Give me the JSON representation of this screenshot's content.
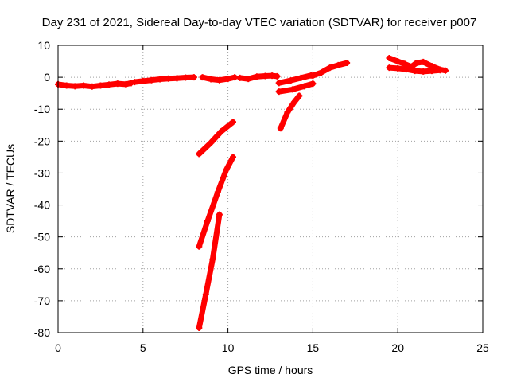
{
  "chart_data": {
    "type": "scatter",
    "title": "Day 231 of 2021, Sidereal Day-to-day VTEC variation (SDTVAR) for receiver p007",
    "xlabel": "GPS time / hours",
    "ylabel": "SDTVAR / TECUs",
    "xlim": [
      0,
      25
    ],
    "ylim": [
      -80,
      10
    ],
    "xticks": [
      "0",
      "5",
      "10",
      "15",
      "20",
      "25"
    ],
    "yticks": [
      "10",
      "0",
      "-10",
      "-20",
      "-30",
      "-40",
      "-50",
      "-60",
      "-70",
      "-80"
    ],
    "grid": true,
    "legend": "none",
    "series_color": "#ff0000",
    "segments": [
      [
        [
          0.0,
          -2.2
        ],
        [
          0.5,
          -2.6
        ],
        [
          1.0,
          -2.8
        ],
        [
          1.5,
          -2.6
        ],
        [
          2.0,
          -2.9
        ],
        [
          2.5,
          -2.6
        ],
        [
          3.0,
          -2.3
        ],
        [
          3.5,
          -2.0
        ],
        [
          4.0,
          -2.2
        ],
        [
          4.3,
          -1.8
        ]
      ],
      [
        [
          4.5,
          -1.5
        ],
        [
          5.0,
          -1.2
        ],
        [
          5.5,
          -0.9
        ],
        [
          6.0,
          -0.6
        ],
        [
          6.5,
          -0.4
        ],
        [
          7.0,
          -0.3
        ],
        [
          7.5,
          -0.1
        ],
        [
          8.0,
          0.0
        ]
      ],
      [
        [
          8.5,
          0.0
        ],
        [
          9.0,
          -0.6
        ],
        [
          9.5,
          -0.9
        ],
        [
          10.0,
          -0.5
        ],
        [
          10.4,
          0.0
        ]
      ],
      [
        [
          10.7,
          -0.2
        ],
        [
          11.2,
          -0.5
        ],
        [
          11.7,
          0.2
        ],
        [
          12.2,
          0.4
        ],
        [
          12.6,
          0.5
        ],
        [
          12.9,
          0.3
        ]
      ],
      [
        [
          13.0,
          -1.8
        ],
        [
          13.7,
          -1.0
        ],
        [
          14.3,
          -0.2
        ],
        [
          14.9,
          0.6
        ]
      ],
      [
        [
          13.0,
          -4.5
        ],
        [
          13.8,
          -3.8
        ],
        [
          14.5,
          -2.8
        ],
        [
          15.0,
          -2.0
        ]
      ],
      [
        [
          15.0,
          0.5
        ],
        [
          15.5,
          1.5
        ],
        [
          16.0,
          3.0
        ],
        [
          16.5,
          3.8
        ],
        [
          17.0,
          4.5
        ]
      ],
      [
        [
          13.1,
          -16.0
        ],
        [
          13.5,
          -11.0
        ],
        [
          13.9,
          -7.8
        ],
        [
          14.2,
          -5.8
        ]
      ],
      [
        [
          8.3,
          -24.0
        ],
        [
          9.0,
          -20.5
        ],
        [
          9.6,
          -17.0
        ],
        [
          10.3,
          -14.0
        ]
      ],
      [
        [
          8.3,
          -53.0
        ],
        [
          8.8,
          -45.0
        ],
        [
          9.4,
          -36.0
        ],
        [
          9.9,
          -29.0
        ],
        [
          10.3,
          -25.0
        ]
      ],
      [
        [
          8.3,
          -78.5
        ],
        [
          8.7,
          -68.0
        ],
        [
          9.1,
          -57.0
        ],
        [
          9.5,
          -43.0
        ]
      ],
      [
        [
          19.5,
          6.0
        ],
        [
          20.0,
          5.0
        ],
        [
          20.4,
          4.2
        ],
        [
          20.8,
          3.3
        ],
        [
          21.1,
          4.5
        ],
        [
          21.5,
          4.8
        ],
        [
          22.0,
          3.5
        ],
        [
          22.5,
          2.4
        ],
        [
          22.8,
          2.1
        ]
      ],
      [
        [
          19.5,
          3.0
        ],
        [
          20.0,
          2.8
        ],
        [
          20.5,
          2.5
        ],
        [
          21.0,
          2.0
        ],
        [
          21.5,
          1.8
        ],
        [
          22.0,
          2.0
        ],
        [
          22.5,
          2.2
        ]
      ]
    ]
  }
}
